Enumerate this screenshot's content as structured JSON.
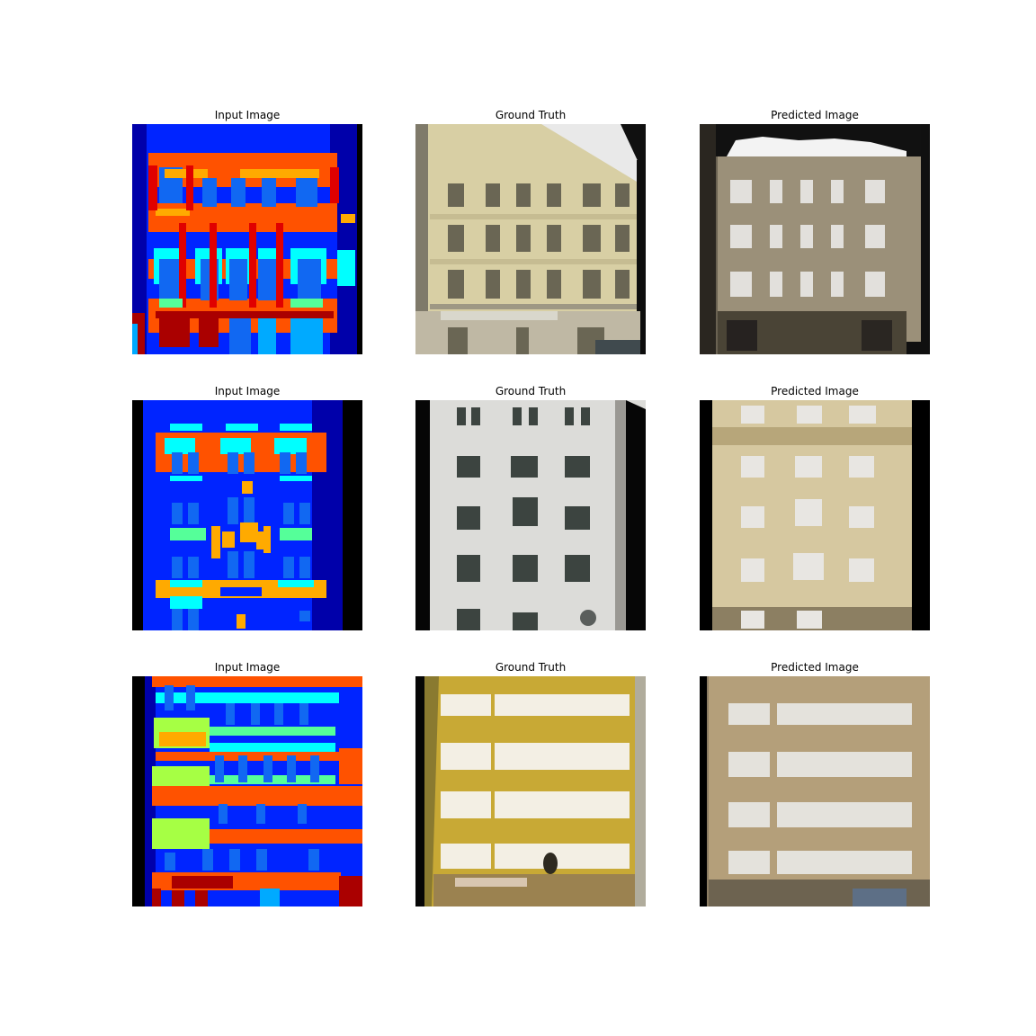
{
  "figure": {
    "rows": [
      {
        "titles": [
          "Input Image",
          "Ground Truth",
          "Predicted Image"
        ]
      },
      {
        "titles": [
          "Input Image",
          "Ground Truth",
          "Predicted Image"
        ]
      },
      {
        "titles": [
          "Input Image",
          "Ground Truth",
          "Predicted Image"
        ]
      }
    ]
  }
}
